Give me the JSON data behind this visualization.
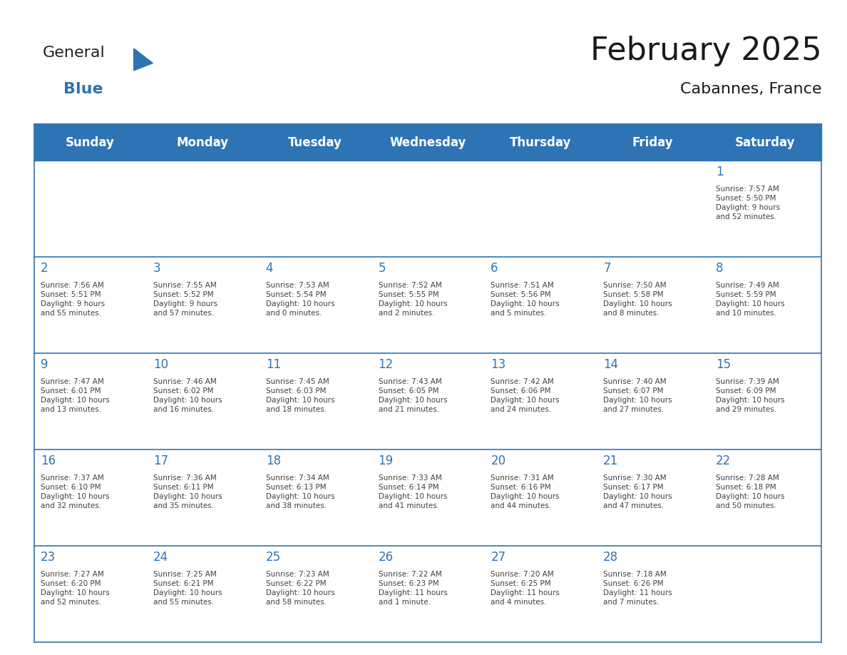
{
  "title": "February 2025",
  "subtitle": "Cabannes, France",
  "header_color": "#2E74B5",
  "header_text_color": "#FFFFFF",
  "cell_bg_color": "#FFFFFF",
  "border_color": "#2E74B5",
  "day_number_color": "#2E74B5",
  "cell_text_color": "#404040",
  "days_of_week": [
    "Sunday",
    "Monday",
    "Tuesday",
    "Wednesday",
    "Thursday",
    "Friday",
    "Saturday"
  ],
  "weeks": [
    [
      {
        "day": "",
        "info": ""
      },
      {
        "day": "",
        "info": ""
      },
      {
        "day": "",
        "info": ""
      },
      {
        "day": "",
        "info": ""
      },
      {
        "day": "",
        "info": ""
      },
      {
        "day": "",
        "info": ""
      },
      {
        "day": "1",
        "info": "Sunrise: 7:57 AM\nSunset: 5:50 PM\nDaylight: 9 hours\nand 52 minutes."
      }
    ],
    [
      {
        "day": "2",
        "info": "Sunrise: 7:56 AM\nSunset: 5:51 PM\nDaylight: 9 hours\nand 55 minutes."
      },
      {
        "day": "3",
        "info": "Sunrise: 7:55 AM\nSunset: 5:52 PM\nDaylight: 9 hours\nand 57 minutes."
      },
      {
        "day": "4",
        "info": "Sunrise: 7:53 AM\nSunset: 5:54 PM\nDaylight: 10 hours\nand 0 minutes."
      },
      {
        "day": "5",
        "info": "Sunrise: 7:52 AM\nSunset: 5:55 PM\nDaylight: 10 hours\nand 2 minutes."
      },
      {
        "day": "6",
        "info": "Sunrise: 7:51 AM\nSunset: 5:56 PM\nDaylight: 10 hours\nand 5 minutes."
      },
      {
        "day": "7",
        "info": "Sunrise: 7:50 AM\nSunset: 5:58 PM\nDaylight: 10 hours\nand 8 minutes."
      },
      {
        "day": "8",
        "info": "Sunrise: 7:49 AM\nSunset: 5:59 PM\nDaylight: 10 hours\nand 10 minutes."
      }
    ],
    [
      {
        "day": "9",
        "info": "Sunrise: 7:47 AM\nSunset: 6:01 PM\nDaylight: 10 hours\nand 13 minutes."
      },
      {
        "day": "10",
        "info": "Sunrise: 7:46 AM\nSunset: 6:02 PM\nDaylight: 10 hours\nand 16 minutes."
      },
      {
        "day": "11",
        "info": "Sunrise: 7:45 AM\nSunset: 6:03 PM\nDaylight: 10 hours\nand 18 minutes."
      },
      {
        "day": "12",
        "info": "Sunrise: 7:43 AM\nSunset: 6:05 PM\nDaylight: 10 hours\nand 21 minutes."
      },
      {
        "day": "13",
        "info": "Sunrise: 7:42 AM\nSunset: 6:06 PM\nDaylight: 10 hours\nand 24 minutes."
      },
      {
        "day": "14",
        "info": "Sunrise: 7:40 AM\nSunset: 6:07 PM\nDaylight: 10 hours\nand 27 minutes."
      },
      {
        "day": "15",
        "info": "Sunrise: 7:39 AM\nSunset: 6:09 PM\nDaylight: 10 hours\nand 29 minutes."
      }
    ],
    [
      {
        "day": "16",
        "info": "Sunrise: 7:37 AM\nSunset: 6:10 PM\nDaylight: 10 hours\nand 32 minutes."
      },
      {
        "day": "17",
        "info": "Sunrise: 7:36 AM\nSunset: 6:11 PM\nDaylight: 10 hours\nand 35 minutes."
      },
      {
        "day": "18",
        "info": "Sunrise: 7:34 AM\nSunset: 6:13 PM\nDaylight: 10 hours\nand 38 minutes."
      },
      {
        "day": "19",
        "info": "Sunrise: 7:33 AM\nSunset: 6:14 PM\nDaylight: 10 hours\nand 41 minutes."
      },
      {
        "day": "20",
        "info": "Sunrise: 7:31 AM\nSunset: 6:16 PM\nDaylight: 10 hours\nand 44 minutes."
      },
      {
        "day": "21",
        "info": "Sunrise: 7:30 AM\nSunset: 6:17 PM\nDaylight: 10 hours\nand 47 minutes."
      },
      {
        "day": "22",
        "info": "Sunrise: 7:28 AM\nSunset: 6:18 PM\nDaylight: 10 hours\nand 50 minutes."
      }
    ],
    [
      {
        "day": "23",
        "info": "Sunrise: 7:27 AM\nSunset: 6:20 PM\nDaylight: 10 hours\nand 52 minutes."
      },
      {
        "day": "24",
        "info": "Sunrise: 7:25 AM\nSunset: 6:21 PM\nDaylight: 10 hours\nand 55 minutes."
      },
      {
        "day": "25",
        "info": "Sunrise: 7:23 AM\nSunset: 6:22 PM\nDaylight: 10 hours\nand 58 minutes."
      },
      {
        "day": "26",
        "info": "Sunrise: 7:22 AM\nSunset: 6:23 PM\nDaylight: 11 hours\nand 1 minute."
      },
      {
        "day": "27",
        "info": "Sunrise: 7:20 AM\nSunset: 6:25 PM\nDaylight: 11 hours\nand 4 minutes."
      },
      {
        "day": "28",
        "info": "Sunrise: 7:18 AM\nSunset: 6:26 PM\nDaylight: 11 hours\nand 7 minutes."
      },
      {
        "day": "",
        "info": ""
      }
    ]
  ],
  "logo_text_general": "General",
  "logo_text_blue": "Blue",
  "logo_color_general": "#222222",
  "logo_color_blue": "#2E74B5",
  "logo_triangle_color": "#2E74B5"
}
